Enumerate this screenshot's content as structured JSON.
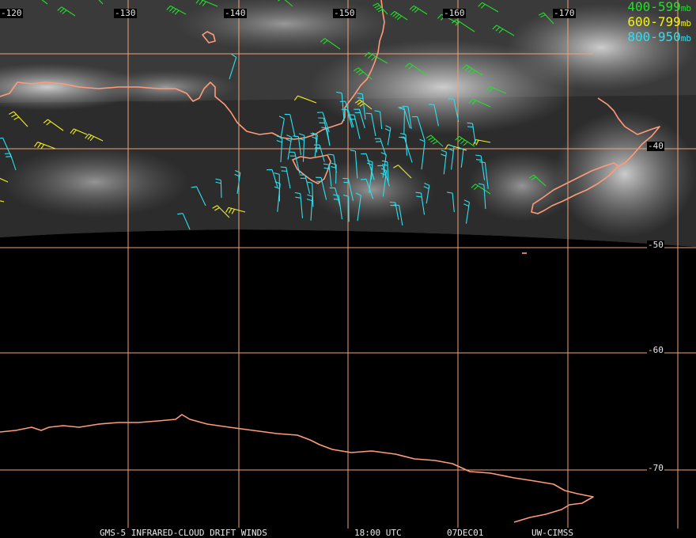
{
  "colors": {
    "grid": "#f0a37a",
    "coast": "#ff9b7a",
    "band_400_599": "#22e02a",
    "band_600_799": "#f2f21a",
    "band_800_950": "#2ee0f0"
  },
  "map": {
    "longitude_labels": [
      "-120",
      "-130",
      "-140",
      "-150",
      "-160",
      "-170"
    ],
    "latitude_labels": [
      "-40",
      "-50",
      "-60",
      "-70"
    ]
  },
  "legend": [
    {
      "range": "400-599",
      "unit": "mb",
      "color": "#22e02a"
    },
    {
      "range": "600-799",
      "unit": "mb",
      "color": "#f2f21a"
    },
    {
      "range": "800-950",
      "unit": "mb",
      "color": "#2ee0f0"
    }
  ],
  "footer": {
    "product": "GMS-5 INFRARED-CLOUD DRIFT WINDS",
    "time": "18:00 UTC",
    "date": "07DEC01",
    "source": "UW-CIMSS"
  }
}
